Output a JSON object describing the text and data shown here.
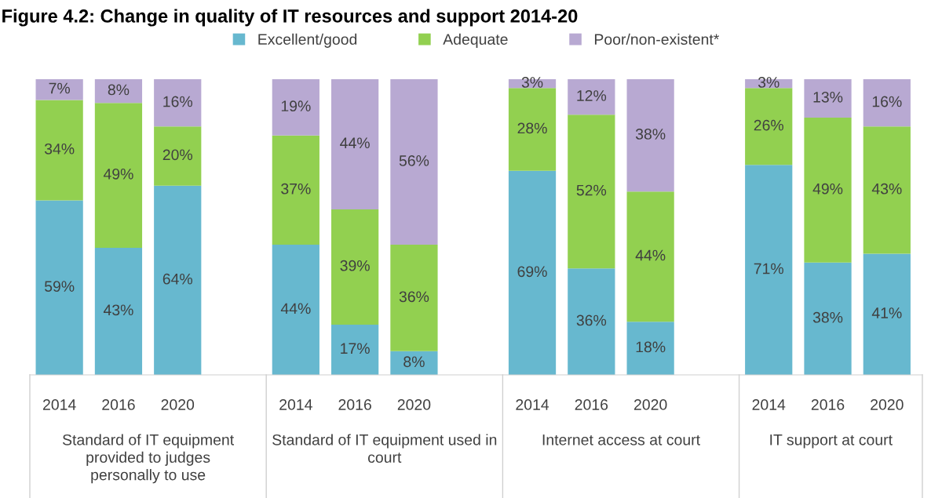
{
  "chart_data": {
    "type": "bar",
    "stacked": true,
    "title": "Figure 4.2: Change in quality of IT resources and support 2014-20",
    "categories": [
      "2014",
      "2016",
      "2020",
      "2014",
      "2016",
      "2020",
      "2014",
      "2016",
      "2020",
      "2014",
      "2016",
      "2020"
    ],
    "series": [
      {
        "name": "Excellent/good",
        "color": "#67b8cf",
        "values": [
          59,
          43,
          64,
          44,
          17,
          8,
          69,
          36,
          18,
          71,
          38,
          41
        ],
        "value_labels": [
          "59%",
          "43%",
          "64%",
          "44%",
          "17%",
          "8%",
          "69%",
          "36%",
          "18%",
          "71%",
          "38%",
          "41%"
        ]
      },
      {
        "name": "Adequate",
        "color": "#92d050",
        "values": [
          34,
          49,
          20,
          37,
          39,
          36,
          28,
          52,
          44,
          26,
          49,
          43
        ],
        "value_labels": [
          "34%",
          "49%",
          "20%",
          "37%",
          "39%",
          "36%",
          "28%",
          "52%",
          "44%",
          "26%",
          "49%",
          "43%"
        ]
      },
      {
        "name": "Poor/non-existent*",
        "color": "#b8a9d2",
        "values": [
          7,
          8,
          16,
          19,
          44,
          56,
          3,
          12,
          38,
          3,
          13,
          16
        ],
        "value_labels": [
          "7%",
          "8%",
          "16%",
          "19%",
          "44%",
          "56%",
          "3%",
          "12%",
          "38%",
          "3%",
          "13%",
          "16%"
        ]
      }
    ],
    "annotations": [
      "Standard of IT equipment provided to judges personally to use",
      "Standard of IT equipment used in court",
      "Internet access at court",
      "IT support at court"
    ],
    "ylim": [
      0,
      100
    ],
    "tick_labels": "x",
    "grid": false,
    "legend": "top"
  }
}
